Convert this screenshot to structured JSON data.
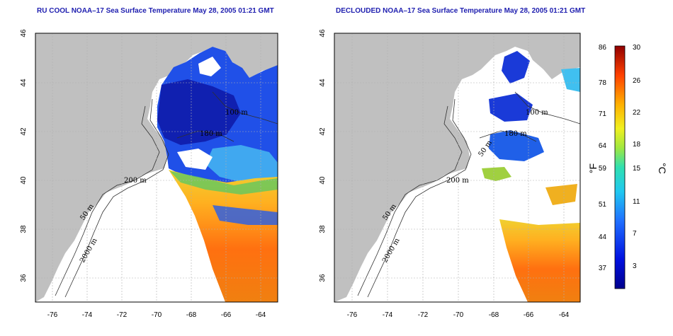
{
  "left_map": {
    "title": "RU COOL NOAA–17 Sea Surface Temperature May 28, 2005 01:21 GMT",
    "lon_ticks": [
      "-76",
      "-74",
      "-72",
      "-70",
      "-68",
      "-66",
      "-64"
    ],
    "lat_ticks": [
      "46",
      "44",
      "42",
      "40",
      "38",
      "36"
    ],
    "contour_labels": [
      "100 m",
      "200 m",
      "50 m",
      "2000 m",
      "180 m"
    ]
  },
  "right_map": {
    "title": "DECLOUDED NOAA–17 Sea Surface Temperature May 28, 2005 01:21 GMT",
    "lon_ticks": [
      "-76",
      "-74",
      "-72",
      "-70",
      "-68",
      "-66",
      "-64"
    ],
    "lat_ticks": [
      "46",
      "44",
      "42",
      "40",
      "38",
      "36"
    ],
    "contour_labels": [
      "100 m",
      "200 m",
      "50 m",
      "2000 m",
      "180 m",
      "50 m"
    ]
  },
  "colorbar": {
    "fahrenheit_label": "°F",
    "celsius_label": "°C",
    "fahrenheit_ticks": [
      "86",
      "78",
      "71",
      "64",
      "59",
      "51",
      "44",
      "37"
    ],
    "celsius_ticks": [
      "30",
      "26",
      "22",
      "18",
      "15",
      "11",
      "7",
      "3"
    ]
  },
  "colors": {
    "land": "#c0c0c0",
    "grid": "#b0b0b0",
    "title": "#2020b0"
  }
}
